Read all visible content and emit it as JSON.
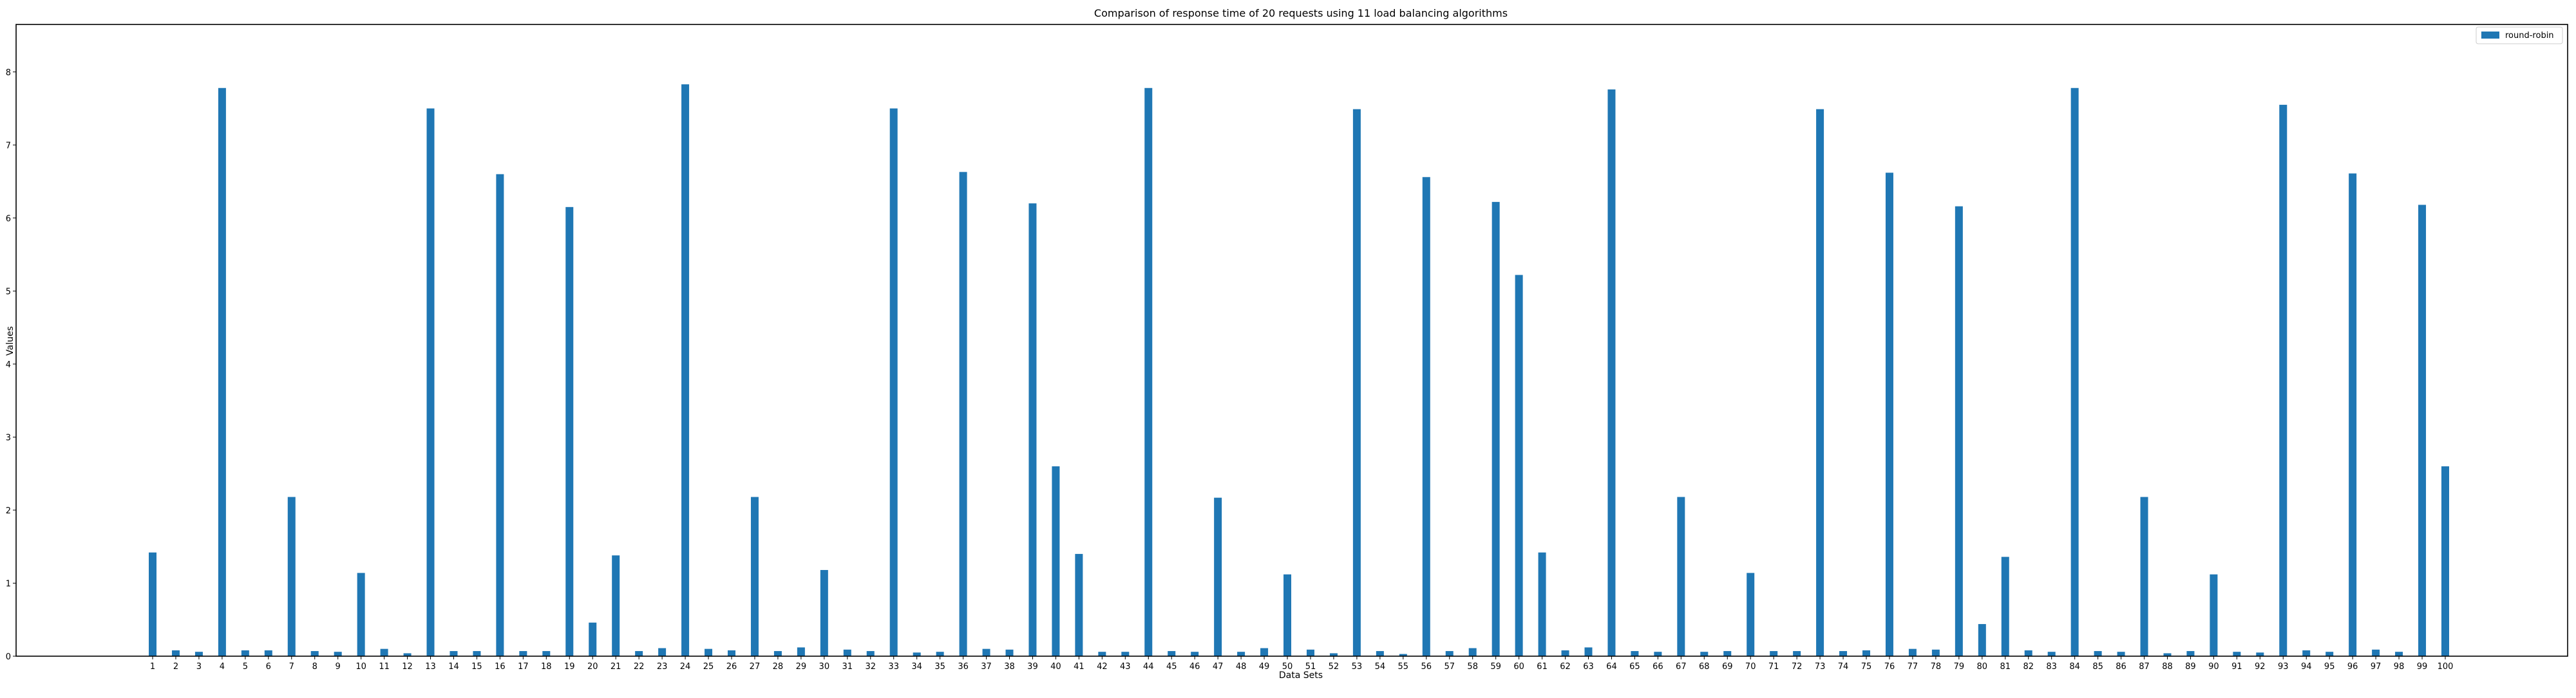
{
  "chart_data": {
    "type": "bar",
    "title": "Comparison of response time of 20 requests using 11 load balancing algorithms",
    "xlabel": "Data Sets",
    "ylabel": "Values",
    "ylim": [
      0,
      8.65
    ],
    "yticks": [
      0,
      1,
      2,
      3,
      4,
      5,
      6,
      7,
      8
    ],
    "grid": false,
    "legend_position": "top-right",
    "categories": [
      "1",
      "2",
      "3",
      "4",
      "5",
      "6",
      "7",
      "8",
      "9",
      "10",
      "11",
      "12",
      "13",
      "14",
      "15",
      "16",
      "17",
      "18",
      "19",
      "20",
      "21",
      "22",
      "23",
      "24",
      "25",
      "26",
      "27",
      "28",
      "29",
      "30",
      "31",
      "32",
      "33",
      "34",
      "35",
      "36",
      "37",
      "38",
      "39",
      "40",
      "41",
      "42",
      "43",
      "44",
      "45",
      "46",
      "47",
      "48",
      "49",
      "50",
      "51",
      "52",
      "53",
      "54",
      "55",
      "56",
      "57",
      "58",
      "59",
      "60",
      "61",
      "62",
      "63",
      "64",
      "65",
      "66",
      "67",
      "68",
      "69",
      "70",
      "71",
      "72",
      "73",
      "74",
      "75",
      "76",
      "77",
      "78",
      "79",
      "80",
      "81",
      "82",
      "83",
      "84",
      "85",
      "86",
      "87",
      "88",
      "89",
      "90",
      "91",
      "92",
      "93",
      "94",
      "95",
      "96",
      "97",
      "98",
      "99",
      "100"
    ],
    "series": [
      {
        "name": "round-robin",
        "color": "#1f77b4",
        "values": [
          1.42,
          0.08,
          0.06,
          7.78,
          0.08,
          0.08,
          2.18,
          0.07,
          0.06,
          1.14,
          0.1,
          0.04,
          7.5,
          0.07,
          0.07,
          6.6,
          0.07,
          0.07,
          6.15,
          0.46,
          1.38,
          0.07,
          0.11,
          7.83,
          0.1,
          0.08,
          2.18,
          0.07,
          0.12,
          1.18,
          0.09,
          0.07,
          7.5,
          0.05,
          0.06,
          6.63,
          0.1,
          0.09,
          6.2,
          2.6,
          1.4,
          0.06,
          0.06,
          7.78,
          0.07,
          0.06,
          2.17,
          0.06,
          0.11,
          1.12,
          0.09,
          0.04,
          7.49,
          0.07,
          0.03,
          6.56,
          0.07,
          0.11,
          6.22,
          5.22,
          1.42,
          0.08,
          0.12,
          7.76,
          0.07,
          0.06,
          2.18,
          0.06,
          0.07,
          1.14,
          0.07,
          0.07,
          7.49,
          0.07,
          0.08,
          6.62,
          0.1,
          0.09,
          6.16,
          0.44,
          1.36,
          0.08,
          0.06,
          7.78,
          0.07,
          0.06,
          2.18,
          0.04,
          0.07,
          1.12,
          0.06,
          0.05,
          7.55,
          0.08,
          0.06,
          6.61,
          0.09,
          0.06,
          6.18,
          2.6
        ]
      }
    ]
  }
}
